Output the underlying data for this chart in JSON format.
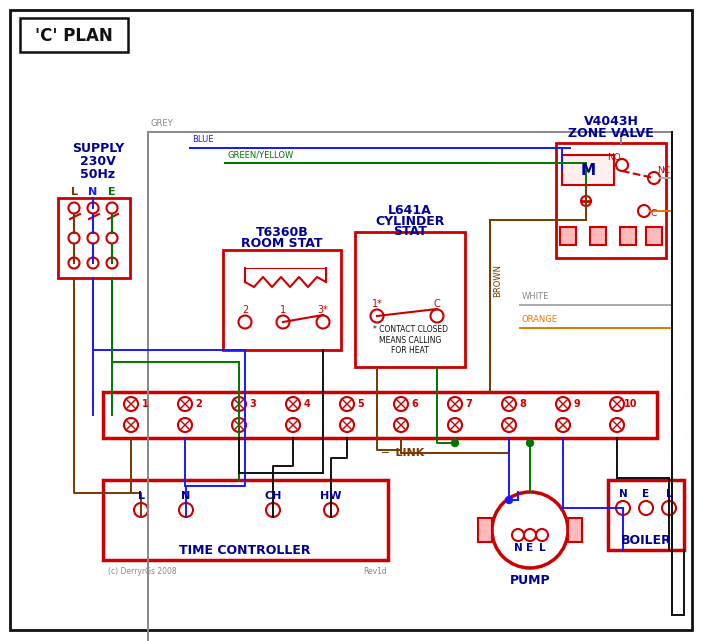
{
  "bg_color": "#ffffff",
  "red": "#cc0000",
  "blue": "#1a1aff",
  "green": "#007700",
  "grey": "#888888",
  "brown": "#7a3800",
  "orange": "#e07800",
  "black": "#111111",
  "dark_blue": "#000099",
  "title": "'C' PLAN",
  "supply_text_lines": [
    "SUPPLY",
    "230V",
    "50Hz"
  ],
  "lne_labels": [
    "L",
    "N",
    "E"
  ],
  "room_stat_title1": "T6360B",
  "room_stat_title2": "ROOM STAT",
  "cyl_stat_title1": "L641A",
  "cyl_stat_title2": "CYLINDER",
  "cyl_stat_title3": "STAT",
  "zone_valve_title1": "V4043H",
  "zone_valve_title2": "ZONE VALVE",
  "time_ctrl_label": "TIME CONTROLLER",
  "pump_label": "PUMP",
  "boiler_label": "BOILER",
  "link_label": "LINK",
  "terminal_nums": [
    "1",
    "2",
    "3",
    "4",
    "5",
    "6",
    "7",
    "8",
    "9",
    "10"
  ],
  "tc_terminals": [
    "L",
    "N",
    "CH",
    "HW"
  ],
  "pump_terminals": [
    "N",
    "E",
    "L"
  ],
  "boiler_terminals": [
    "N",
    "E",
    "L"
  ],
  "wire_label_grey": "GREY",
  "wire_label_blue": "BLUE",
  "wire_label_gy": "GREEN/YELLOW",
  "wire_label_brown": "BROWN",
  "wire_label_white": "WHITE",
  "wire_label_orange": "ORANGE",
  "note_text": "* CONTACT CLOSED\nMEANS CALLING\nFOR HEAT",
  "copyright": "(c) DerryrGs 2008",
  "revision": "Rev1d"
}
